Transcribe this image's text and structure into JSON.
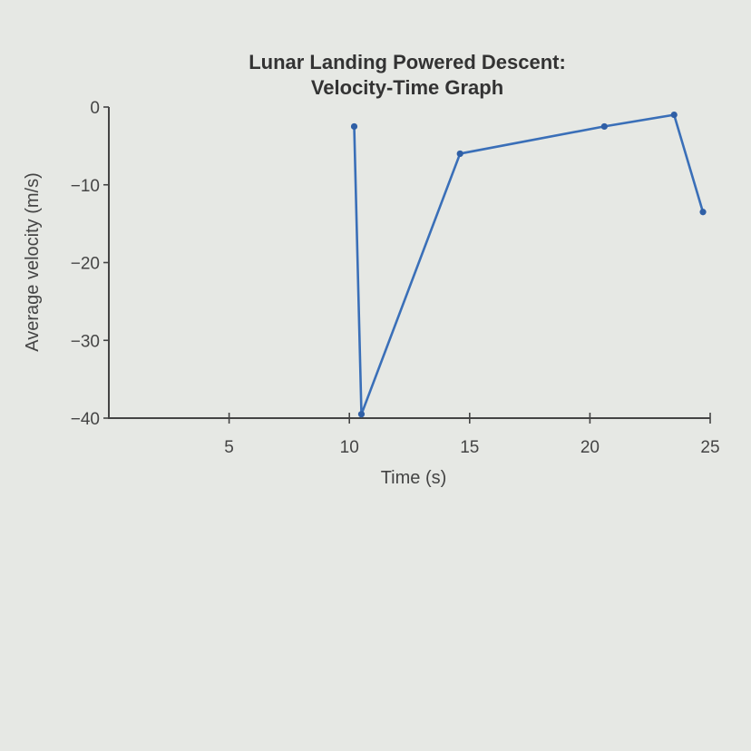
{
  "chart_data": {
    "type": "line",
    "title": [
      "Lunar Landing Powered Descent:",
      "Velocity-Time Graph"
    ],
    "xlabel": "Time (s)",
    "ylabel": "Average velocity (m/s)",
    "xlim": [
      0,
      25
    ],
    "ylim": [
      -40,
      0
    ],
    "xticks": [
      5,
      10,
      15,
      20,
      25
    ],
    "yticks": [
      0,
      -10,
      -20,
      -30,
      -40
    ],
    "grid": false,
    "colors": {
      "line": "#3a6fb8",
      "point": "#2f5fa6"
    },
    "series": [
      {
        "points": [
          {
            "x": 10.2,
            "y": -2.5
          },
          {
            "x": 10.5,
            "y": -39.5
          },
          {
            "x": 14.6,
            "y": -6
          },
          {
            "x": 20.6,
            "y": -2.5
          },
          {
            "x": 23.5,
            "y": -1
          },
          {
            "x": 24.7,
            "y": -13.5
          }
        ]
      }
    ]
  }
}
